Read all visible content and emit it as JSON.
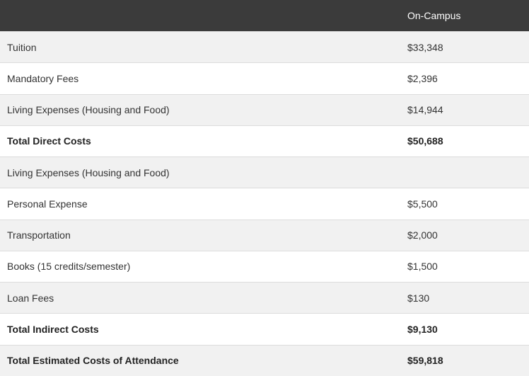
{
  "table": {
    "header": {
      "value_column": "On-Campus"
    },
    "rows": [
      {
        "label": "Tuition",
        "value": "$33,348"
      },
      {
        "label": "Mandatory Fees",
        "value": "$2,396"
      },
      {
        "label": "Living Expenses (Housing and Food)",
        "value": "$14,944"
      },
      {
        "label": "Total Direct Costs",
        "value": "$50,688",
        "total": true
      },
      {
        "label": "Living Expenses (Housing and Food)"
      },
      {
        "label": "Personal Expense",
        "value": "$5,500"
      },
      {
        "label": "Transportation",
        "value": "$2,000"
      },
      {
        "label": "Books (15 credits/semester)",
        "value": "$1,500"
      },
      {
        "label": "Loan Fees",
        "value": "$130"
      },
      {
        "label": "Total Indirect Costs",
        "value": "$9,130",
        "total": true
      },
      {
        "label": "Total Estimated Costs of Attendance",
        "value": "$59,818",
        "total": true
      }
    ]
  }
}
